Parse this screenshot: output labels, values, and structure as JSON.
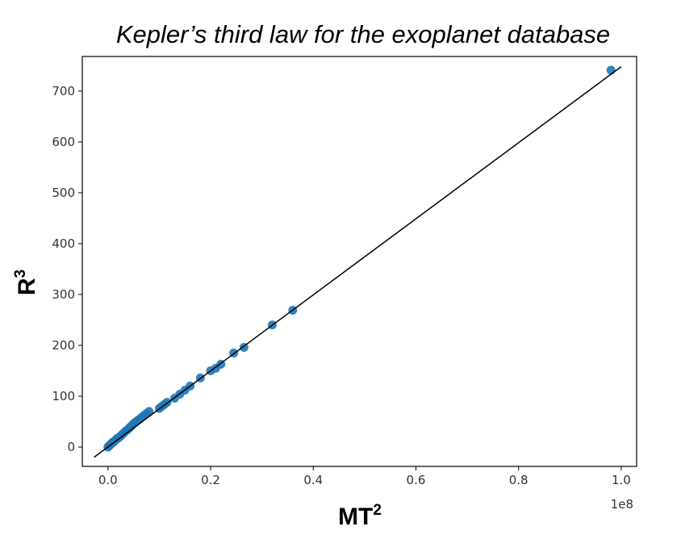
{
  "chart_data": {
    "type": "scatter",
    "title": "Kepler’s third law for the exoplanet database",
    "xlabel": {
      "base": "MT",
      "sup": "2"
    },
    "ylabel": {
      "base": "R",
      "sup": "3"
    },
    "x_offset_text": "1e8",
    "x_ticks": [
      "0.0",
      "0.2",
      "0.4",
      "0.6",
      "0.8",
      "1.0"
    ],
    "x_tick_values": [
      0.0,
      0.2,
      0.4,
      0.6,
      0.8,
      1.0
    ],
    "y_ticks": [
      "0",
      "100",
      "200",
      "300",
      "400",
      "500",
      "600",
      "700"
    ],
    "y_tick_values": [
      0,
      100,
      200,
      300,
      400,
      500,
      600,
      700
    ],
    "xlim": [
      -0.05,
      1.03
    ],
    "ylim": [
      -38,
      768
    ],
    "grid": false,
    "points": {
      "x": [
        0.0,
        0.002,
        0.004,
        0.006,
        0.008,
        0.01,
        0.012,
        0.015,
        0.018,
        0.02,
        0.024,
        0.027,
        0.03,
        0.034,
        0.038,
        0.042,
        0.046,
        0.05,
        0.055,
        0.06,
        0.065,
        0.07,
        0.075,
        0.08,
        0.1,
        0.105,
        0.11,
        0.115,
        0.13,
        0.14,
        0.15,
        0.16,
        0.18,
        0.2,
        0.21,
        0.22,
        0.245,
        0.265,
        0.32,
        0.36,
        0.98
      ],
      "y": [
        0,
        2,
        4,
        6,
        8,
        10,
        11,
        14,
        17,
        18,
        21,
        24,
        27,
        31,
        34,
        38,
        42,
        46,
        50,
        54,
        58,
        62,
        66,
        70,
        76,
        80,
        84,
        88,
        96,
        104,
        112,
        120,
        136,
        150,
        155,
        163,
        185,
        196,
        240,
        269,
        741
      ]
    },
    "fit_line": {
      "x": [
        -0.027,
        1.0
      ],
      "y": [
        -20,
        748
      ]
    },
    "colors": {
      "points": "#1f77b4",
      "line": "#000000",
      "axes": "#000000",
      "ticks": "#333333"
    }
  }
}
